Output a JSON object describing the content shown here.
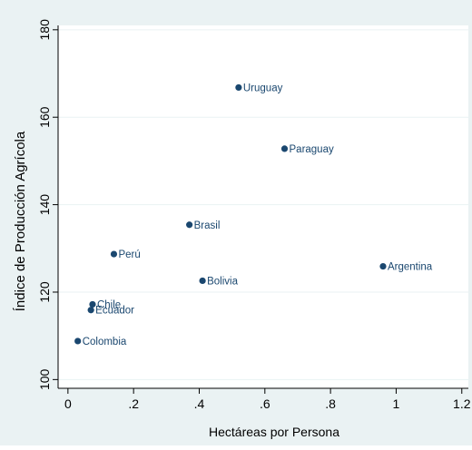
{
  "chart_data": {
    "type": "scatter",
    "title": "",
    "xlabel": "Hectáreas por Persona",
    "ylabel": "Índice de Producción Agrícola",
    "xlim": [
      -0.03,
      1.22
    ],
    "ylim": [
      98,
      181
    ],
    "x_ticks": [
      {
        "value": 0,
        "label": "0"
      },
      {
        "value": 0.2,
        "label": ".2"
      },
      {
        "value": 0.4,
        "label": ".4"
      },
      {
        "value": 0.6,
        "label": ".6"
      },
      {
        "value": 0.8,
        "label": ".8"
      },
      {
        "value": 1.0,
        "label": "1"
      },
      {
        "value": 1.2,
        "label": "1.2"
      }
    ],
    "y_ticks": [
      {
        "value": 100,
        "label": "100"
      },
      {
        "value": 120,
        "label": "120"
      },
      {
        "value": 140,
        "label": "140"
      },
      {
        "value": 160,
        "label": "160"
      },
      {
        "value": 180,
        "label": "180"
      }
    ],
    "grid": true,
    "points": [
      {
        "label": "Uruguay",
        "x": 0.52,
        "y": 166.8
      },
      {
        "label": "Paraguay",
        "x": 0.66,
        "y": 152.8
      },
      {
        "label": "Brasil",
        "x": 0.37,
        "y": 135.4
      },
      {
        "label": "Perú",
        "x": 0.14,
        "y": 128.7
      },
      {
        "label": "Argentina",
        "x": 0.96,
        "y": 125.9
      },
      {
        "label": "Bolivia",
        "x": 0.41,
        "y": 122.6
      },
      {
        "label": "Chile",
        "x": 0.075,
        "y": 117.2
      },
      {
        "label": "Ecuador",
        "x": 0.07,
        "y": 115.9
      },
      {
        "label": "Colombia",
        "x": 0.03,
        "y": 108.8
      }
    ],
    "colors": {
      "outer_background": "#eaf2f3",
      "plot_background": "#ffffff",
      "marker": "#1a476f",
      "text": "#000000",
      "label_text": "#1a476f",
      "grid": "#eaf2f3"
    }
  }
}
